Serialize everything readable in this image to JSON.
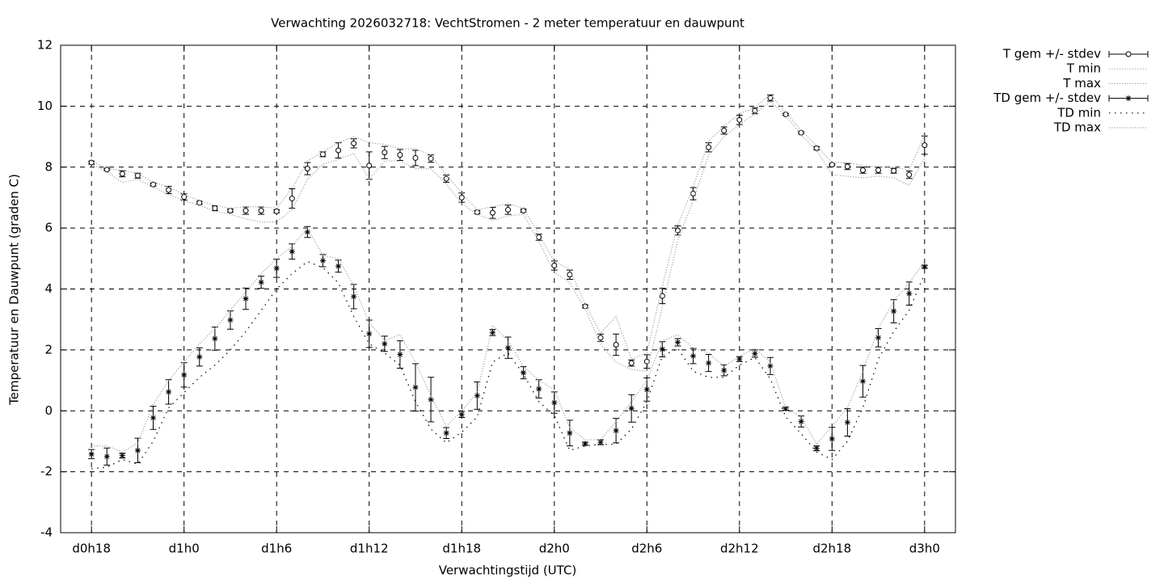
{
  "chart_data": {
    "type": "errorbar-line",
    "title": "Verwachting 2026032718: VechtStromen - 2 meter temperatuur en dauwpunt",
    "xlabel": "Verwachtingstijd (UTC)",
    "ylabel": "Temperatuur en Dauwpunt (graden C)",
    "categories": [
      "d0h18",
      null,
      null,
      null,
      null,
      null,
      "d1h0",
      null,
      null,
      null,
      null,
      null,
      "d1h6",
      null,
      null,
      null,
      null,
      null,
      "d1h12",
      null,
      null,
      null,
      null,
      null,
      "d1h18",
      null,
      null,
      null,
      null,
      null,
      "d2h0",
      null,
      null,
      null,
      null,
      null,
      "d2h6",
      null,
      null,
      null,
      null,
      null,
      "d2h12",
      null,
      null,
      null,
      null,
      null,
      "d2h18",
      null,
      null,
      null,
      null,
      null,
      "d3h0"
    ],
    "ylim": [
      -4,
      12
    ],
    "yticks": [
      -4,
      -2,
      0,
      2,
      4,
      6,
      8,
      10,
      12
    ],
    "grid": true,
    "legend": "outside-right",
    "series": [
      {
        "name": "T gem +/- stdev",
        "color": "#000000",
        "style": "errorbars",
        "marker": "circle",
        "values": [
          8.15,
          7.92,
          7.78,
          7.72,
          7.43,
          7.25,
          7.02,
          6.83,
          6.65,
          6.57,
          6.57,
          6.57,
          6.55,
          6.97,
          7.95,
          8.42,
          8.55,
          8.78,
          8.05,
          8.48,
          8.4,
          8.3,
          8.28,
          7.62,
          7.0,
          6.52,
          6.5,
          6.6,
          6.57,
          5.7,
          4.77,
          4.47,
          3.43,
          2.4,
          2.17,
          1.57,
          1.62,
          3.77,
          5.92,
          7.13,
          8.65,
          9.2,
          9.55,
          9.85,
          10.27,
          9.73,
          9.13,
          8.62,
          8.08,
          8.02,
          7.9,
          7.9,
          7.88,
          7.75,
          8.72
        ],
        "errors": [
          0.05,
          0.03,
          0.1,
          0.08,
          0.05,
          0.12,
          0.1,
          0.05,
          0.08,
          0.05,
          0.12,
          0.12,
          0.05,
          0.32,
          0.2,
          0.08,
          0.25,
          0.15,
          0.45,
          0.2,
          0.18,
          0.25,
          0.12,
          0.12,
          0.15,
          0.05,
          0.18,
          0.15,
          0.05,
          0.1,
          0.15,
          0.15,
          0.05,
          0.12,
          0.35,
          0.1,
          0.22,
          0.25,
          0.15,
          0.2,
          0.15,
          0.12,
          0.15,
          0.1,
          0.1,
          0.03,
          0.03,
          0.05,
          0.03,
          0.1,
          0.1,
          0.1,
          0.08,
          0.12,
          0.3
        ]
      },
      {
        "name": "T min",
        "color": "#a0a0a0",
        "style": "dotted",
        "values": [
          8.1,
          7.85,
          7.5,
          7.6,
          7.35,
          7.1,
          6.9,
          6.75,
          6.55,
          6.45,
          6.3,
          6.2,
          6.2,
          6.6,
          7.6,
          8.1,
          8.25,
          8.45,
          7.6,
          8.2,
          8.2,
          7.95,
          7.95,
          7.45,
          6.8,
          6.45,
          6.25,
          6.4,
          6.45,
          5.55,
          4.55,
          4.2,
          3.35,
          2.2,
          1.6,
          1.35,
          1.3,
          3.4,
          5.6,
          6.9,
          8.4,
          9.0,
          9.4,
          9.75,
          10.15,
          9.7,
          9.05,
          8.55,
          7.75,
          7.7,
          7.65,
          7.7,
          7.65,
          7.4,
          8.3
        ]
      },
      {
        "name": "T max",
        "color": "#a0a0a0",
        "style": "dotted",
        "values": [
          8.2,
          7.95,
          7.9,
          7.8,
          7.5,
          7.35,
          7.1,
          6.9,
          6.75,
          6.65,
          6.7,
          6.7,
          6.65,
          7.3,
          8.2,
          8.5,
          8.8,
          9.0,
          8.8,
          8.75,
          8.6,
          8.6,
          8.4,
          7.75,
          7.15,
          6.6,
          6.7,
          6.8,
          6.65,
          5.8,
          4.9,
          4.65,
          3.5,
          2.55,
          3.1,
          1.7,
          1.9,
          4.1,
          6.1,
          7.35,
          8.85,
          9.35,
          9.75,
          9.95,
          10.4,
          9.8,
          9.2,
          8.7,
          8.15,
          8.15,
          8.05,
          8.0,
          8.0,
          7.9,
          9.05
        ]
      },
      {
        "name": "TD gem +/- stdev",
        "color": "#000000",
        "style": "errorbars",
        "marker": "star",
        "values": [
          -1.42,
          -1.5,
          -1.47,
          -1.3,
          -0.23,
          0.62,
          1.18,
          1.77,
          2.37,
          2.98,
          3.68,
          4.22,
          4.68,
          5.23,
          5.87,
          4.93,
          4.75,
          3.75,
          2.53,
          2.2,
          1.85,
          0.77,
          0.37,
          -0.73,
          -0.12,
          0.5,
          2.57,
          2.07,
          1.25,
          0.72,
          0.27,
          -0.73,
          -1.08,
          -1.03,
          -0.65,
          0.08,
          0.7,
          2.02,
          2.25,
          1.8,
          1.57,
          1.33,
          1.7,
          1.88,
          1.47,
          0.07,
          -0.35,
          -1.23,
          -0.92,
          -0.38,
          0.97,
          2.4,
          3.27,
          3.85,
          4.73
        ],
        "errors": [
          0.15,
          0.28,
          0.08,
          0.4,
          0.38,
          0.4,
          0.4,
          0.3,
          0.38,
          0.3,
          0.35,
          0.2,
          0.3,
          0.25,
          0.18,
          0.2,
          0.2,
          0.4,
          0.45,
          0.25,
          0.45,
          0.78,
          0.73,
          0.18,
          0.1,
          0.45,
          0.1,
          0.35,
          0.2,
          0.3,
          0.35,
          0.42,
          0.05,
          0.08,
          0.4,
          0.45,
          0.38,
          0.25,
          0.12,
          0.25,
          0.28,
          0.18,
          0.08,
          0.12,
          0.28,
          0.05,
          0.18,
          0.08,
          0.38,
          0.45,
          0.52,
          0.3,
          0.38,
          0.38,
          0.05
        ]
      },
      {
        "name": "TD min",
        "color": "#000000",
        "style": "dotted-sparse",
        "values": [
          -1.9,
          -1.85,
          -1.6,
          -1.75,
          -1.0,
          0.1,
          0.6,
          1.1,
          1.5,
          2.0,
          2.6,
          3.3,
          4.0,
          4.5,
          4.9,
          4.7,
          4.2,
          3.1,
          2.2,
          1.9,
          1.5,
          0.3,
          -0.6,
          -1.05,
          -0.7,
          -0.2,
          1.6,
          1.9,
          1.2,
          0.3,
          -0.15,
          -1.3,
          -1.15,
          -1.1,
          -1.1,
          -0.6,
          0.3,
          1.8,
          2.05,
          1.3,
          1.1,
          1.1,
          1.5,
          1.75,
          1.05,
          -0.2,
          -0.75,
          -1.35,
          -1.6,
          -1.0,
          0.1,
          1.7,
          2.6,
          3.3,
          4.5
        ]
      },
      {
        "name": "TD max",
        "color": "#a0a0a0",
        "style": "dotted",
        "values": [
          -1.15,
          -1.15,
          -1.35,
          -1.05,
          0.2,
          1.0,
          1.6,
          2.2,
          2.7,
          3.3,
          3.9,
          4.5,
          5.0,
          5.4,
          6.0,
          5.1,
          5.0,
          4.1,
          2.9,
          2.3,
          2.5,
          1.6,
          0.5,
          -0.5,
          0.0,
          0.6,
          2.8,
          2.3,
          1.45,
          1.0,
          0.7,
          -0.55,
          -0.95,
          -0.95,
          -0.35,
          0.3,
          1.0,
          2.3,
          2.5,
          2.05,
          1.9,
          1.45,
          1.8,
          2.05,
          1.6,
          0.1,
          -0.2,
          -1.1,
          -0.5,
          0.1,
          1.3,
          2.7,
          3.6,
          4.2,
          4.9
        ]
      }
    ]
  }
}
